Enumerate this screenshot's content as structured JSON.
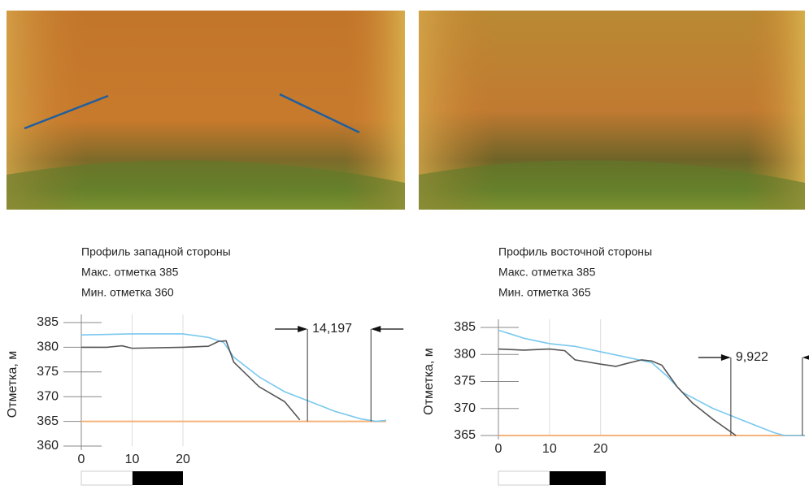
{
  "chart_data": [
    {
      "type": "line",
      "title": "Профиль западной стороны",
      "subtitle": [
        "Макс. отметка 385",
        "Мин. отметка 360"
      ],
      "y_label": "Отметка, м",
      "xlim": [
        0,
        60
      ],
      "ylim": [
        360,
        385
      ],
      "xticks": [
        0,
        10,
        20
      ],
      "yticks": [
        360,
        365,
        370,
        375,
        380,
        385
      ],
      "grid": true,
      "reference_line": {
        "value": 365,
        "color": "#f5b27a"
      },
      "annotation": {
        "text": "14,197",
        "x": [
          44.5,
          57
        ]
      },
      "series": [
        {
          "color": "#79c8ee",
          "x": [
            0,
            10,
            20,
            25,
            28,
            30,
            35,
            40,
            45,
            50,
            55,
            58,
            60
          ],
          "values": [
            382.5,
            382.7,
            382.7,
            382,
            381,
            378,
            374,
            371,
            369,
            367,
            365.5,
            365,
            365.2
          ]
        },
        {
          "color": "#555555",
          "x": [
            0,
            5,
            8,
            10,
            20,
            25,
            27,
            28.5,
            30,
            35,
            40,
            43
          ],
          "values": [
            380,
            380,
            380.3,
            379.8,
            380,
            380.2,
            381.2,
            381.3,
            377,
            372,
            369,
            365.3
          ]
        }
      ]
    },
    {
      "type": "line",
      "title": "Профиль восточной стороны",
      "subtitle": [
        "Макс. отметка 385",
        "Мин. отметка 365"
      ],
      "y_label": "Отметка, м",
      "xlim": [
        0,
        60
      ],
      "ylim": [
        365,
        385
      ],
      "xticks": [
        0,
        10,
        20
      ],
      "yticks": [
        365,
        370,
        375,
        380,
        385
      ],
      "grid": true,
      "reference_line": {
        "value": 365,
        "color": "#f5b27a"
      },
      "annotation": {
        "text": "9,922",
        "x": [
          45.5,
          59.5
        ]
      },
      "series": [
        {
          "color": "#79c8ee",
          "x": [
            0,
            5,
            10,
            15,
            20,
            25,
            30,
            33,
            36,
            38,
            42,
            46,
            50,
            54,
            56,
            60
          ],
          "values": [
            384.5,
            383,
            382,
            381.5,
            380.5,
            379.5,
            378.5,
            376,
            373,
            372,
            370,
            368.5,
            367,
            365.5,
            365,
            365
          ]
        },
        {
          "color": "#555555",
          "x": [
            0,
            5,
            10,
            13,
            15,
            20,
            23,
            25,
            28,
            30,
            32,
            35,
            38,
            42,
            45,
            46.5
          ],
          "values": [
            381,
            380.8,
            381,
            380.7,
            379,
            378.2,
            377.8,
            378.3,
            379,
            378.8,
            378,
            374,
            371,
            368,
            366,
            365
          ]
        }
      ]
    }
  ]
}
